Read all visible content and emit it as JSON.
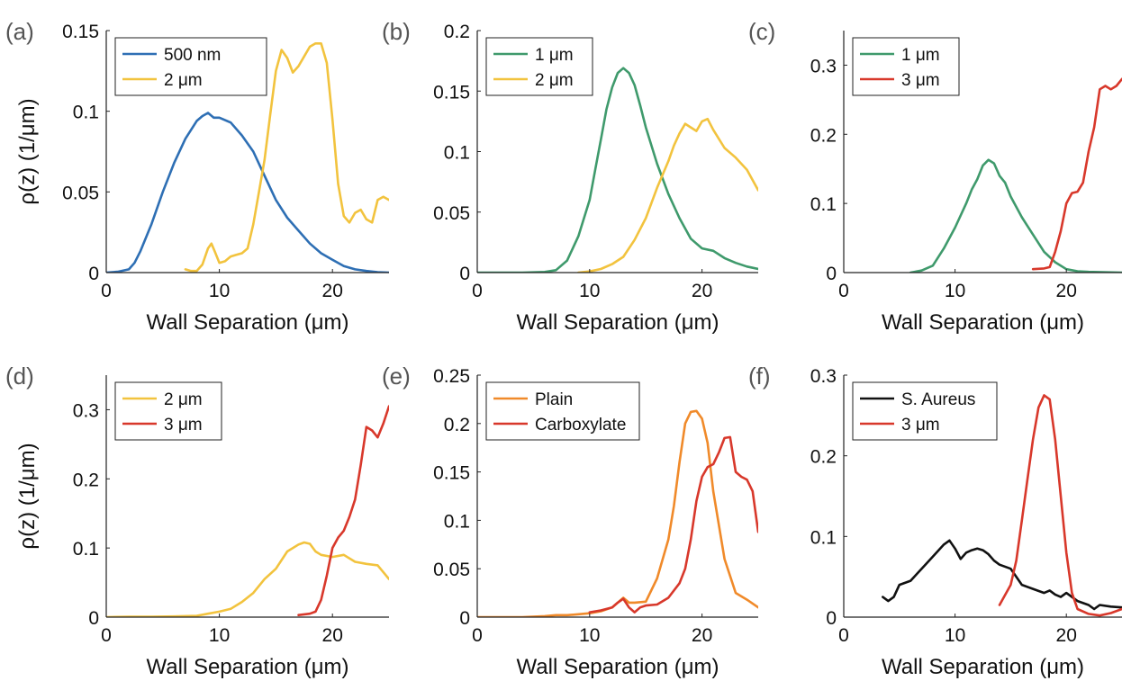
{
  "chart_data": [
    {
      "type": "line",
      "panel_label": "(a)",
      "xlabel": "Wall Separation (μm)",
      "ylabel": "ρ(z) (1/μm)",
      "xlim": [
        0,
        25
      ],
      "ylim": [
        0,
        0.15
      ],
      "xticks": [
        0,
        10,
        20
      ],
      "yticks": [
        0,
        0.05,
        0.1,
        0.15
      ],
      "xtick_labels": [
        "0",
        "10",
        "20"
      ],
      "ytick_labels": [
        "0",
        "0.05",
        "0.1",
        "0.15"
      ],
      "legend_position": "top-left",
      "series": [
        {
          "name": "500 nm",
          "color": "#2e6fb4",
          "x": [
            0,
            1,
            2,
            2.5,
            3,
            4,
            5,
            6,
            7,
            8,
            8.5,
            9,
            9.5,
            10,
            11,
            12,
            13,
            14,
            15,
            16,
            17,
            18,
            19,
            20,
            21,
            22,
            23,
            24,
            25
          ],
          "y": [
            0,
            0.0005,
            0.002,
            0.006,
            0.013,
            0.03,
            0.05,
            0.068,
            0.083,
            0.094,
            0.097,
            0.099,
            0.096,
            0.096,
            0.093,
            0.085,
            0.075,
            0.06,
            0.045,
            0.034,
            0.026,
            0.018,
            0.012,
            0.008,
            0.004,
            0.002,
            0.001,
            0.0003,
            0
          ]
        },
        {
          "name": "2 μm",
          "color": "#f2c33e",
          "x": [
            7,
            7.5,
            8,
            8.5,
            9,
            9.3,
            9.6,
            10,
            10.5,
            11,
            11.5,
            12,
            12.5,
            13,
            13.5,
            14,
            14.5,
            15,
            15.5,
            16,
            16.5,
            17,
            17.5,
            18,
            18.5,
            19,
            19.5,
            20,
            20.5,
            21,
            21.5,
            22,
            22.5,
            23,
            23.5,
            24,
            24.5,
            25
          ],
          "y": [
            0.002,
            0.001,
            0.001,
            0.005,
            0.015,
            0.018,
            0.013,
            0.006,
            0.007,
            0.01,
            0.011,
            0.012,
            0.015,
            0.03,
            0.05,
            0.07,
            0.098,
            0.125,
            0.138,
            0.133,
            0.124,
            0.128,
            0.134,
            0.14,
            0.142,
            0.142,
            0.13,
            0.095,
            0.055,
            0.035,
            0.031,
            0.037,
            0.039,
            0.033,
            0.031,
            0.045,
            0.047,
            0.045
          ]
        }
      ]
    },
    {
      "type": "line",
      "panel_label": "(b)",
      "xlabel": "Wall Separation (μm)",
      "ylabel": "",
      "xlim": [
        0,
        25
      ],
      "ylim": [
        0,
        0.2
      ],
      "xticks": [
        0,
        10,
        20
      ],
      "yticks": [
        0,
        0.05,
        0.1,
        0.15,
        0.2
      ],
      "xtick_labels": [
        "0",
        "10",
        "20"
      ],
      "ytick_labels": [
        "0",
        "0.05",
        "0.1",
        "0.15",
        "0.2"
      ],
      "legend_position": "top-left",
      "series": [
        {
          "name": "1 μm",
          "color": "#3f9a6c",
          "x": [
            0,
            2,
            4,
            6,
            7,
            8,
            9,
            10,
            10.5,
            11,
            11.5,
            12,
            12.5,
            13,
            13.5,
            14,
            14.5,
            15,
            16,
            17,
            18,
            19,
            20,
            21,
            22,
            23,
            24,
            25
          ],
          "y": [
            0,
            0,
            0,
            0.0005,
            0.002,
            0.01,
            0.03,
            0.06,
            0.085,
            0.11,
            0.135,
            0.153,
            0.165,
            0.169,
            0.165,
            0.155,
            0.138,
            0.12,
            0.09,
            0.065,
            0.045,
            0.028,
            0.02,
            0.018,
            0.012,
            0.008,
            0.005,
            0.003
          ]
        },
        {
          "name": "2 μm",
          "color": "#f2c33e",
          "x": [
            9,
            10,
            11,
            12,
            13,
            14,
            15,
            16,
            17,
            17.5,
            18,
            18.5,
            19,
            19.5,
            20,
            20.5,
            21,
            22,
            23,
            24,
            25
          ],
          "y": [
            0,
            0.001,
            0.003,
            0.007,
            0.013,
            0.027,
            0.045,
            0.07,
            0.092,
            0.105,
            0.115,
            0.123,
            0.12,
            0.117,
            0.125,
            0.127,
            0.118,
            0.103,
            0.095,
            0.085,
            0.068
          ]
        }
      ]
    },
    {
      "type": "line",
      "panel_label": "(c)",
      "xlabel": "Wall Separation (μm)",
      "ylabel": "",
      "xlim": [
        0,
        25
      ],
      "ylim": [
        0,
        0.35
      ],
      "xticks": [
        0,
        10,
        20
      ],
      "yticks": [
        0,
        0.1,
        0.2,
        0.3
      ],
      "xtick_labels": [
        "0",
        "10",
        "20"
      ],
      "ytick_labels": [
        "0",
        "0.1",
        "0.2",
        "0.3"
      ],
      "legend_position": "top-left",
      "series": [
        {
          "name": "1 μm",
          "color": "#3f9a6c",
          "x": [
            6,
            7,
            8,
            9,
            10,
            11,
            11.5,
            12,
            12.5,
            13,
            13.5,
            14,
            14.5,
            15,
            16,
            17,
            18,
            19,
            20,
            21,
            22,
            25
          ],
          "y": [
            0,
            0.003,
            0.01,
            0.035,
            0.065,
            0.1,
            0.12,
            0.135,
            0.155,
            0.163,
            0.158,
            0.14,
            0.13,
            0.11,
            0.08,
            0.055,
            0.03,
            0.015,
            0.005,
            0.002,
            0.001,
            0
          ]
        },
        {
          "name": "3 μm",
          "color": "#d8382b",
          "x": [
            17,
            18,
            18.5,
            19,
            19.5,
            20,
            20.5,
            21,
            21.5,
            22,
            22.5,
            23,
            23.5,
            24,
            24.5,
            25
          ],
          "y": [
            0.005,
            0.006,
            0.008,
            0.03,
            0.06,
            0.1,
            0.115,
            0.117,
            0.13,
            0.175,
            0.21,
            0.265,
            0.27,
            0.265,
            0.27,
            0.28
          ]
        }
      ]
    },
    {
      "type": "line",
      "panel_label": "(d)",
      "xlabel": "Wall Separation (μm)",
      "ylabel": "ρ(z) (1/μm)",
      "xlim": [
        0,
        25
      ],
      "ylim": [
        0,
        0.35
      ],
      "xticks": [
        0,
        10,
        20
      ],
      "yticks": [
        0,
        0.1,
        0.2,
        0.3
      ],
      "xtick_labels": [
        "0",
        "10",
        "20"
      ],
      "ytick_labels": [
        "0",
        "0.1",
        "0.2",
        "0.3"
      ],
      "legend_position": "top-left",
      "series": [
        {
          "name": "2 μm",
          "color": "#f2c33e",
          "x": [
            0,
            2,
            4,
            6,
            8,
            9,
            10,
            11,
            12,
            13,
            14,
            15,
            16,
            17,
            17.5,
            18,
            18.5,
            19,
            20,
            21,
            22,
            23,
            24,
            25
          ],
          "y": [
            0,
            0.0005,
            0.0005,
            0.001,
            0.002,
            0.005,
            0.008,
            0.012,
            0.022,
            0.035,
            0.055,
            0.07,
            0.095,
            0.105,
            0.108,
            0.106,
            0.095,
            0.09,
            0.087,
            0.09,
            0.08,
            0.077,
            0.075,
            0.055
          ]
        },
        {
          "name": "3 μm",
          "color": "#d8382b",
          "x": [
            17,
            18,
            18.5,
            19,
            19.5,
            20,
            20.5,
            21,
            21.5,
            22,
            22.5,
            23,
            23.5,
            24,
            24.5,
            25
          ],
          "y": [
            0.003,
            0.005,
            0.008,
            0.025,
            0.06,
            0.1,
            0.115,
            0.125,
            0.145,
            0.17,
            0.22,
            0.275,
            0.27,
            0.26,
            0.28,
            0.305
          ]
        }
      ]
    },
    {
      "type": "line",
      "panel_label": "(e)",
      "xlabel": "Wall Separation (μm)",
      "ylabel": "",
      "xlim": [
        0,
        25
      ],
      "ylim": [
        0,
        0.25
      ],
      "xticks": [
        0,
        10,
        20
      ],
      "yticks": [
        0,
        0.05,
        0.1,
        0.15,
        0.2,
        0.25
      ],
      "xtick_labels": [
        "0",
        "10",
        "20"
      ],
      "ytick_labels": [
        "0",
        "0.05",
        "0.1",
        "0.15",
        "0.2",
        "0.25"
      ],
      "legend_position": "top-left",
      "series": [
        {
          "name": "Plain",
          "color": "#f08a2a",
          "x": [
            0,
            2,
            4,
            6,
            7,
            8,
            9,
            10,
            11,
            12,
            12.5,
            13,
            13.5,
            14,
            15,
            16,
            17,
            17.5,
            18,
            18.5,
            19,
            19.5,
            20,
            20.5,
            21,
            22,
            23,
            24,
            25
          ],
          "y": [
            0,
            0,
            0,
            0.001,
            0.002,
            0.002,
            0.003,
            0.004,
            0.006,
            0.01,
            0.015,
            0.02,
            0.015,
            0.015,
            0.016,
            0.04,
            0.08,
            0.115,
            0.16,
            0.2,
            0.212,
            0.213,
            0.205,
            0.18,
            0.13,
            0.06,
            0.025,
            0.018,
            0.01
          ]
        },
        {
          "name": "Carboxylate",
          "color": "#d8382b",
          "x": [
            10,
            11,
            12,
            12.5,
            13,
            13.5,
            14,
            14.5,
            15,
            16,
            17,
            18,
            18.5,
            19,
            19.5,
            20,
            20.5,
            21,
            21.5,
            22,
            22.5,
            23,
            23.5,
            24,
            24.5,
            25
          ],
          "y": [
            0.005,
            0.007,
            0.01,
            0.015,
            0.019,
            0.01,
            0.005,
            0.01,
            0.012,
            0.013,
            0.02,
            0.035,
            0.05,
            0.08,
            0.12,
            0.145,
            0.155,
            0.158,
            0.17,
            0.185,
            0.186,
            0.15,
            0.145,
            0.142,
            0.13,
            0.088
          ]
        }
      ]
    },
    {
      "type": "line",
      "panel_label": "(f)",
      "xlabel": "Wall Separation (μm)",
      "ylabel": "",
      "xlim": [
        0,
        25
      ],
      "ylim": [
        0,
        0.3
      ],
      "xticks": [
        0,
        10,
        20
      ],
      "yticks": [
        0,
        0.1,
        0.2,
        0.3
      ],
      "xtick_labels": [
        "0",
        "10",
        "20"
      ],
      "ytick_labels": [
        "0",
        "0.1",
        "0.2",
        "0.3"
      ],
      "legend_position": "top-left",
      "series": [
        {
          "name": "S. Aureus",
          "color": "#111111",
          "x": [
            3.5,
            4,
            4.5,
            5,
            6,
            7,
            8,
            9,
            9.5,
            10,
            10.5,
            11,
            11.5,
            12,
            12.5,
            13,
            13.5,
            14,
            15,
            16,
            17,
            18,
            18.5,
            19,
            19.5,
            20,
            21,
            22,
            22.5,
            23,
            24,
            25
          ],
          "y": [
            0.025,
            0.02,
            0.025,
            0.04,
            0.045,
            0.06,
            0.075,
            0.09,
            0.095,
            0.085,
            0.072,
            0.08,
            0.083,
            0.085,
            0.083,
            0.078,
            0.07,
            0.065,
            0.06,
            0.04,
            0.035,
            0.03,
            0.033,
            0.028,
            0.025,
            0.03,
            0.02,
            0.015,
            0.01,
            0.015,
            0.013,
            0.012
          ]
        },
        {
          "name": "3 μm",
          "color": "#d8382b",
          "x": [
            14,
            15,
            15.5,
            16,
            16.5,
            17,
            17.5,
            18,
            18.5,
            19,
            19.5,
            20,
            20.5,
            21,
            22,
            23,
            24,
            25
          ],
          "y": [
            0.015,
            0.04,
            0.07,
            0.12,
            0.17,
            0.22,
            0.26,
            0.275,
            0.27,
            0.22,
            0.15,
            0.08,
            0.03,
            0.01,
            0.004,
            0.002,
            0.005,
            0.01
          ]
        }
      ]
    }
  ]
}
